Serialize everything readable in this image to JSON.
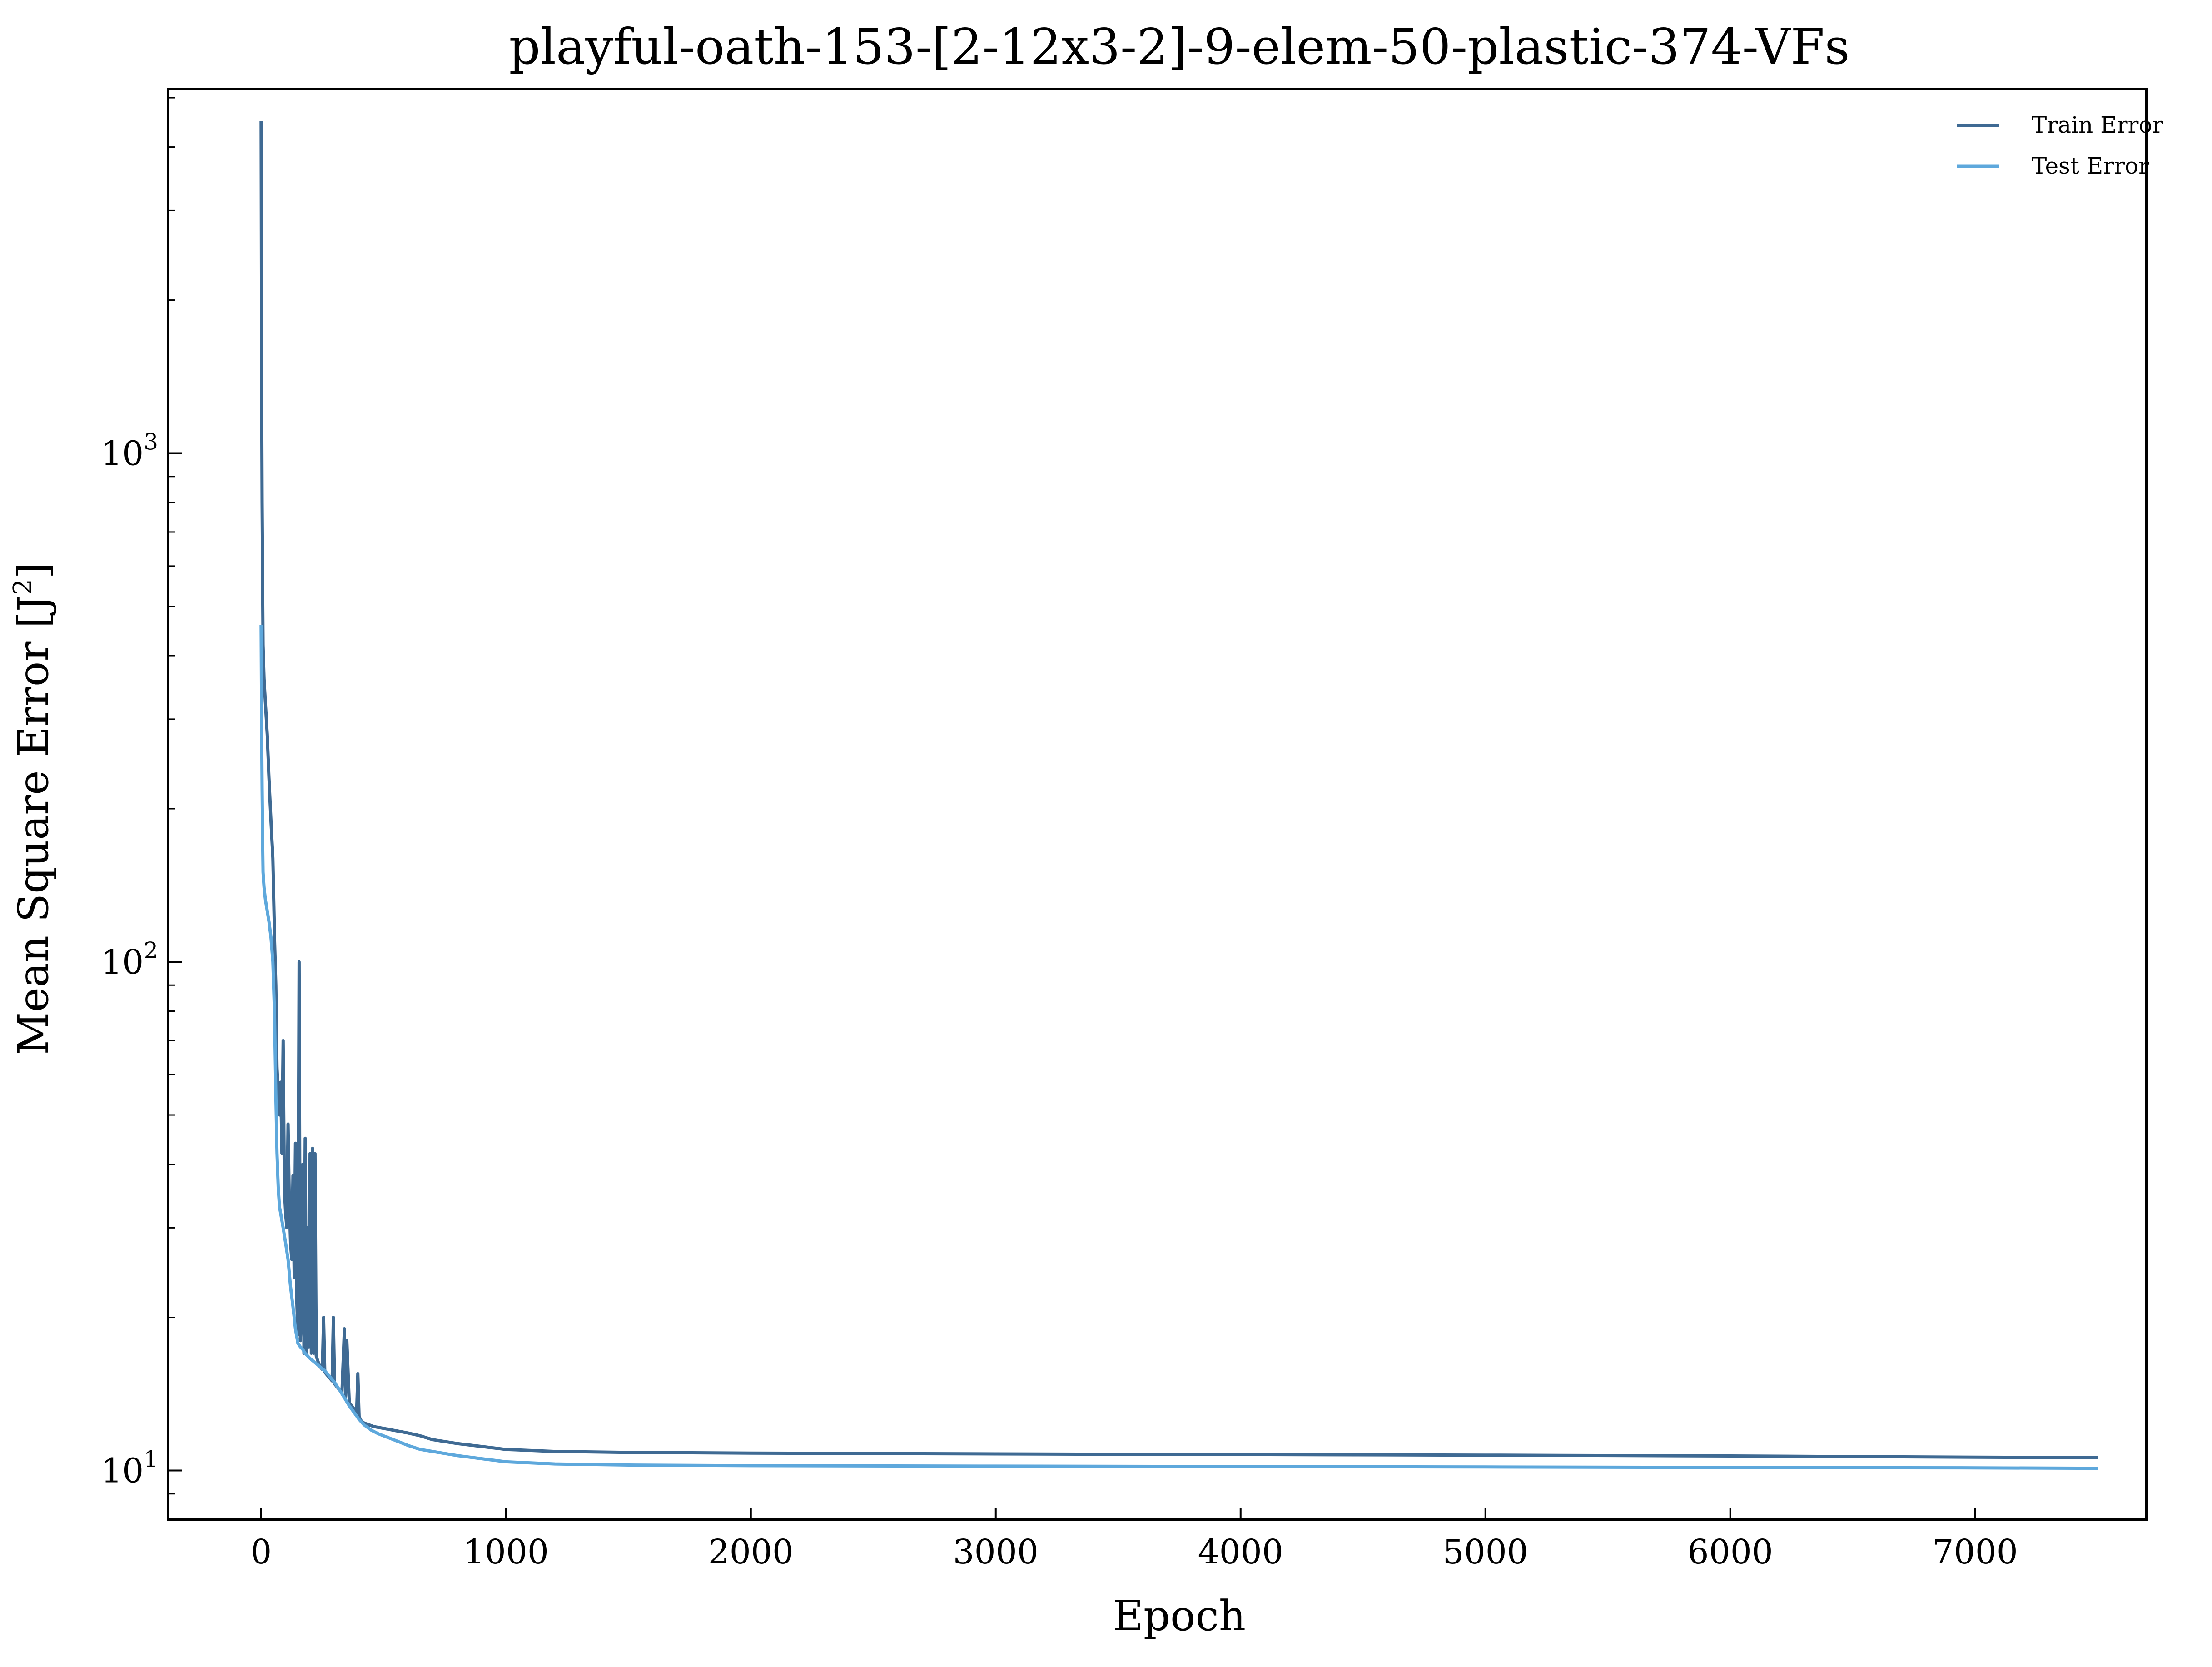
{
  "chart_data": {
    "type": "line",
    "title": "playful-oath-153-[2-12x3-2]-9-elem-50-plastic-374-VFs",
    "xlabel": "Epoch",
    "ylabel": "Mean Square Error [J",
    "ylabel_superscript": "2",
    "ylabel_suffix": "]",
    "xlim": [
      -380,
      7700
    ],
    "ylim": [
      8,
      5200
    ],
    "yscale": "log",
    "x_ticks": [
      0,
      1000,
      2000,
      3000,
      4000,
      5000,
      6000,
      7000
    ],
    "x_tick_labels": [
      "0",
      "1000",
      "2000",
      "3000",
      "4000",
      "5000",
      "6000",
      "7000"
    ],
    "y_ticks": [
      10,
      100,
      1000
    ],
    "y_tick_bases": [
      "10",
      "10",
      "10"
    ],
    "y_tick_exponents": [
      "1",
      "2",
      "3"
    ],
    "grid": false,
    "legend_position": "top-right",
    "series": [
      {
        "name": "Train Error",
        "color": "#3f6a93",
        "x": [
          0,
          2,
          4,
          8,
          12,
          18,
          25,
          32,
          40,
          48,
          55,
          60,
          65,
          70,
          75,
          80,
          85,
          90,
          95,
          100,
          105,
          110,
          115,
          120,
          125,
          130,
          135,
          140,
          145,
          150,
          155,
          160,
          165,
          170,
          175,
          180,
          185,
          190,
          195,
          200,
          205,
          210,
          215,
          220,
          225,
          230,
          240,
          250,
          255,
          260,
          270,
          280,
          290,
          295,
          300,
          310,
          320,
          330,
          340,
          345,
          350,
          360,
          370,
          380,
          390,
          395,
          400,
          405,
          410,
          420,
          440,
          460,
          480,
          500,
          520,
          540,
          560,
          580,
          600,
          650,
          700,
          800,
          900,
          1000,
          1200,
          1500,
          2000,
          3000,
          4000,
          5000,
          6000,
          7000,
          7500
        ],
        "y": [
          4500,
          1500,
          800,
          420,
          360,
          320,
          280,
          230,
          190,
          160,
          110,
          90,
          62,
          55,
          50,
          58,
          42,
          70,
          36,
          32,
          30,
          48,
          34,
          28,
          26,
          38,
          24,
          44,
          22,
          18.5,
          100,
          18,
          20,
          40,
          17,
          45,
          17,
          30,
          17.5,
          42,
          17,
          43,
          17,
          42,
          16.8,
          16.5,
          16,
          15.8,
          20,
          15.6,
          15.4,
          15.2,
          15,
          20,
          14.8,
          14.6,
          14.4,
          14.2,
          19,
          14,
          18,
          13.6,
          13.4,
          13.2,
          13,
          15.5,
          12.8,
          12.6,
          12.5,
          12.4,
          12.3,
          12.2,
          12.15,
          12.1,
          12.05,
          12,
          11.95,
          11.9,
          11.85,
          11.7,
          11.5,
          11.3,
          11.15,
          11,
          10.9,
          10.85,
          10.82,
          10.78,
          10.75,
          10.72,
          10.68,
          10.62,
          10.6
        ]
      },
      {
        "name": "Test Error",
        "color": "#5ea8dc",
        "x": [
          0,
          2,
          4,
          6,
          8,
          12,
          18,
          25,
          32,
          40,
          48,
          55,
          60,
          65,
          70,
          75,
          80,
          90,
          100,
          110,
          120,
          130,
          140,
          150,
          160,
          170,
          180,
          190,
          200,
          220,
          240,
          260,
          280,
          300,
          320,
          340,
          360,
          380,
          400,
          420,
          450,
          480,
          520,
          560,
          600,
          650,
          700,
          800,
          900,
          1000,
          1200,
          1500,
          2000,
          3000,
          4000,
          5000,
          6000,
          7000,
          7500
        ],
        "y": [
          460,
          300,
          220,
          180,
          150,
          140,
          132,
          126,
          120,
          112,
          100,
          78,
          55,
          42,
          36,
          33,
          32,
          30,
          28,
          26,
          23,
          21,
          19,
          17.8,
          17.5,
          17.3,
          17,
          16.8,
          16.6,
          16.3,
          16,
          15.7,
          15.3,
          14.9,
          14.4,
          13.9,
          13.4,
          13,
          12.6,
          12.3,
          12,
          11.8,
          11.6,
          11.4,
          11.2,
          11,
          10.9,
          10.7,
          10.55,
          10.4,
          10.3,
          10.25,
          10.22,
          10.2,
          10.18,
          10.16,
          10.14,
          10.12,
          10.1
        ]
      }
    ]
  }
}
